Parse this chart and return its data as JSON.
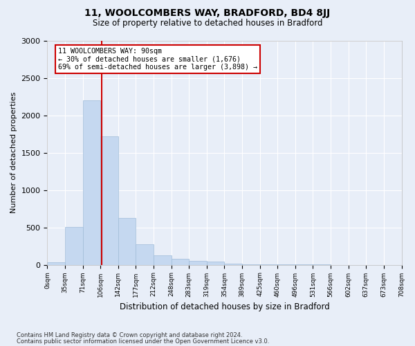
{
  "title1": "11, WOOLCOMBERS WAY, BRADFORD, BD4 8JJ",
  "title2": "Size of property relative to detached houses in Bradford",
  "xlabel": "Distribution of detached houses by size in Bradford",
  "ylabel": "Number of detached properties",
  "annotation_title": "11 WOOLCOMBERS WAY: 90sqm",
  "annotation_line2": "← 30% of detached houses are smaller (1,676)",
  "annotation_line3": "69% of semi-detached houses are larger (3,898) →",
  "footnote1": "Contains HM Land Registry data © Crown copyright and database right 2024.",
  "footnote2": "Contains public sector information licensed under the Open Government Licence v3.0.",
  "bin_labels": [
    "0sqm",
    "35sqm",
    "71sqm",
    "106sqm",
    "142sqm",
    "177sqm",
    "212sqm",
    "248sqm",
    "283sqm",
    "319sqm",
    "354sqm",
    "389sqm",
    "425sqm",
    "460sqm",
    "496sqm",
    "531sqm",
    "566sqm",
    "602sqm",
    "637sqm",
    "673sqm",
    "708sqm"
  ],
  "bar_values": [
    30,
    510,
    2200,
    1720,
    630,
    270,
    130,
    80,
    55,
    40,
    10,
    5,
    3,
    2,
    1,
    1,
    0,
    0,
    0,
    0
  ],
  "bar_color": "#c5d8f0",
  "bar_edgecolor": "#a0bcd8",
  "redline_x": 2.57,
  "ylim": [
    0,
    3000
  ],
  "yticks": [
    0,
    500,
    1000,
    1500,
    2000,
    2500,
    3000
  ],
  "background_color": "#e8eef8",
  "grid_color": "#ffffff",
  "annotation_box_color": "#ffffff",
  "annotation_box_edgecolor": "#cc0000",
  "redline_color": "#cc0000"
}
